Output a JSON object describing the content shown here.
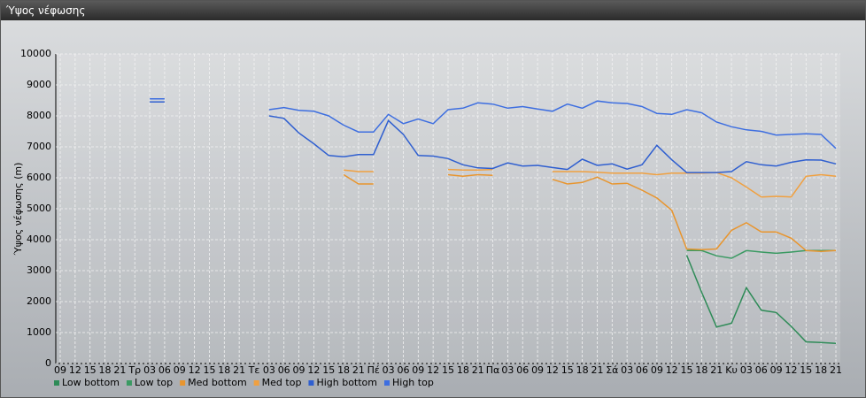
{
  "window": {
    "title": "Ύψος νέφωσης"
  },
  "chart_data": {
    "type": "line",
    "y_label": "Ύψος νέφωσης (m)",
    "categories": [
      "09",
      "12",
      "15",
      "18",
      "21",
      "Τρ",
      "03",
      "06",
      "09",
      "12",
      "15",
      "18",
      "21",
      "Τε",
      "03",
      "06",
      "09",
      "12",
      "15",
      "18",
      "21",
      "Πέ",
      "03",
      "06",
      "09",
      "12",
      "15",
      "18",
      "21",
      "Πα",
      "03",
      "06",
      "09",
      "12",
      "15",
      "18",
      "21",
      "Σά",
      "03",
      "06",
      "09",
      "12",
      "15",
      "18",
      "21",
      "Κυ",
      "03",
      "06",
      "09",
      "12",
      "15",
      "18",
      "21"
    ],
    "ylim": [
      0,
      10000
    ],
    "yticks": [
      0,
      1000,
      2000,
      3000,
      4000,
      5000,
      6000,
      7000,
      8000,
      9000,
      10000
    ],
    "grid": true,
    "series": [
      {
        "name": "Low bottom",
        "color": "#2e8b57",
        "values": [
          null,
          null,
          null,
          null,
          null,
          null,
          null,
          null,
          null,
          null,
          null,
          null,
          null,
          null,
          null,
          null,
          null,
          null,
          null,
          null,
          null,
          null,
          null,
          null,
          null,
          null,
          null,
          null,
          null,
          null,
          null,
          null,
          null,
          null,
          null,
          null,
          null,
          null,
          null,
          null,
          null,
          null,
          3500,
          2300,
          1180,
          1300,
          2450,
          1720,
          1650,
          1200,
          700,
          680,
          650
        ]
      },
      {
        "name": "Low top",
        "color": "#3a9a62",
        "values": [
          null,
          null,
          null,
          null,
          null,
          null,
          null,
          null,
          null,
          null,
          null,
          null,
          null,
          null,
          null,
          null,
          null,
          null,
          null,
          null,
          null,
          null,
          null,
          null,
          null,
          null,
          null,
          null,
          null,
          null,
          null,
          null,
          null,
          null,
          null,
          null,
          null,
          null,
          null,
          null,
          null,
          null,
          3650,
          3650,
          3480,
          3400,
          3650,
          3600,
          3560,
          3600,
          3650,
          3650,
          3650
        ]
      },
      {
        "name": "Med bottom",
        "color": "#e8952e",
        "values": [
          null,
          null,
          null,
          null,
          null,
          null,
          null,
          null,
          null,
          null,
          null,
          null,
          null,
          null,
          null,
          null,
          null,
          null,
          null,
          6100,
          5800,
          5800,
          null,
          null,
          null,
          null,
          6100,
          6050,
          6100,
          6080,
          null,
          null,
          null,
          5950,
          5800,
          5850,
          6020,
          5800,
          5820,
          5600,
          5350,
          4950,
          3700,
          3680,
          3700,
          4300,
          4550,
          4250,
          4250,
          4050,
          3650,
          3620,
          3650
        ]
      },
      {
        "name": "Med top",
        "color": "#f0a040",
        "values": [
          null,
          null,
          null,
          null,
          null,
          null,
          null,
          null,
          null,
          null,
          null,
          null,
          null,
          null,
          null,
          null,
          null,
          null,
          null,
          6250,
          6200,
          6200,
          null,
          null,
          null,
          null,
          6270,
          6250,
          6250,
          6270,
          null,
          null,
          null,
          6200,
          6200,
          6200,
          6180,
          6150,
          6150,
          6150,
          6100,
          6150,
          6150,
          6150,
          6170,
          6000,
          5700,
          5380,
          5400,
          5380,
          6050,
          6100,
          6050
        ]
      },
      {
        "name": "High bottom",
        "color": "#2f5fd0",
        "values": [
          null,
          null,
          null,
          null,
          null,
          null,
          8450,
          8450,
          null,
          null,
          null,
          null,
          null,
          null,
          8000,
          7920,
          7450,
          7100,
          6720,
          6680,
          6750,
          6750,
          7850,
          7400,
          6720,
          6700,
          6620,
          6420,
          6320,
          6300,
          6480,
          6380,
          6400,
          6330,
          6270,
          6600,
          6400,
          6450,
          6280,
          6420,
          7050,
          6580,
          6170,
          6170,
          6170,
          6200,
          6520,
          6420,
          6380,
          6500,
          6580,
          6570,
          6450
        ]
      },
      {
        "name": "High top",
        "color": "#3d6ee0",
        "values": [
          null,
          null,
          null,
          null,
          null,
          null,
          8550,
          8550,
          null,
          null,
          null,
          null,
          null,
          null,
          8200,
          8270,
          8180,
          8150,
          8000,
          7700,
          7480,
          7480,
          8050,
          7750,
          7900,
          7750,
          8200,
          8250,
          8420,
          8380,
          8250,
          8300,
          8220,
          8150,
          8380,
          8250,
          8480,
          8420,
          8400,
          8300,
          8080,
          8050,
          8200,
          8100,
          7800,
          7650,
          7550,
          7500,
          7380,
          7400,
          7420,
          7400,
          6950
        ]
      }
    ]
  }
}
